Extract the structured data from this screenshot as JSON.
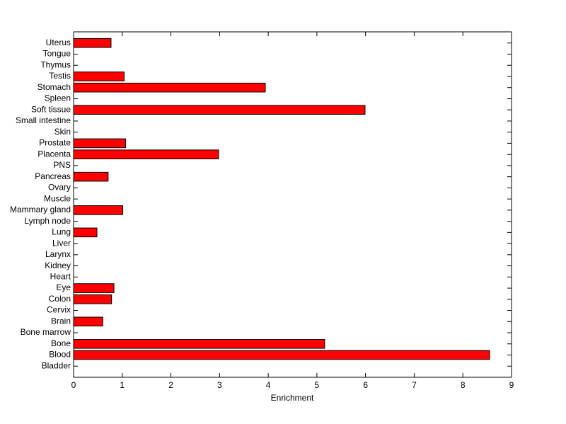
{
  "chart_data": {
    "type": "barh",
    "categories": [
      "Bladder",
      "Blood",
      "Bone",
      "Bone marrow",
      "Brain",
      "Cervix",
      "Colon",
      "Eye",
      "Heart",
      "Kidney",
      "Larynx",
      "Liver",
      "Lung",
      "Lymph node",
      "Mammary gland",
      "Muscle",
      "Ovary",
      "Pancreas",
      "PNS",
      "Placenta",
      "Prostate",
      "Skin",
      "Small intestine",
      "Soft tissue",
      "Spleen",
      "Stomach",
      "Testis",
      "Thymus",
      "Tongue",
      "Uterus"
    ],
    "values": [
      0,
      8.55,
      5.16,
      0,
      0.6,
      0,
      0.78,
      0.83,
      0,
      0,
      0,
      0,
      0.48,
      0,
      1.01,
      0,
      0,
      0.71,
      0,
      2.98,
      1.07,
      0,
      0,
      5.99,
      0,
      3.94,
      1.04,
      0,
      0,
      0.77
    ],
    "color": "#ff0000",
    "xlabel": "Enrichment",
    "xlim": [
      0,
      9
    ],
    "xticks": [
      0,
      1,
      2,
      3,
      4,
      5,
      6,
      7,
      8,
      9
    ],
    "grid": false
  }
}
